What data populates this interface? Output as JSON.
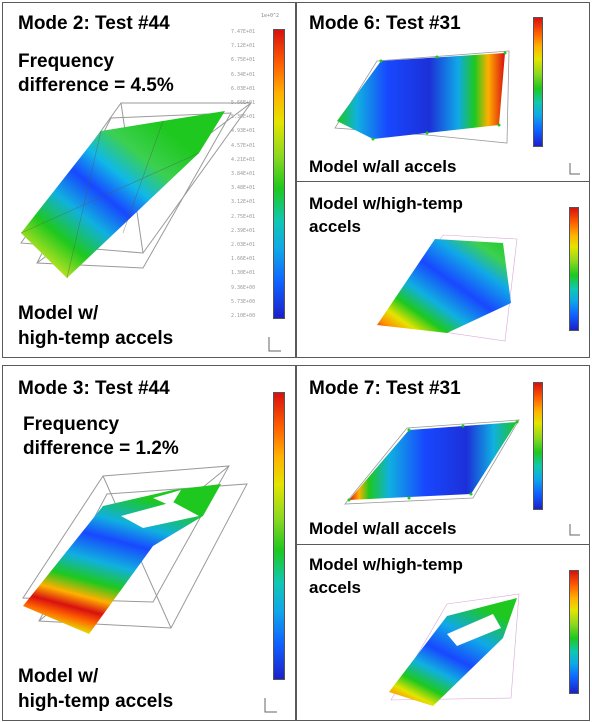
{
  "panels": {
    "mode2": {
      "title": "Mode 2: Test #44",
      "freq_line1": "Frequency",
      "freq_line2": "difference = 4.5%",
      "caption_line1": "Model w/",
      "caption_line2": "high-temp accels",
      "colorbar_unit": "1e+0^2",
      "colorbar_labels": [
        "7.47E+01",
        "7.12E+01",
        "6.75E+01",
        "6.34E+01",
        "6.03E+01",
        "5.66E+01",
        "5.30E+01",
        "4.93E+01",
        "4.57E+01",
        "4.21E+01",
        "3.84E+01",
        "3.48E+01",
        "3.12E+01",
        "2.75E+01",
        "2.39E+01",
        "2.03E+01",
        "1.66E+01",
        "1.30E+01",
        "9.36E+00",
        "5.73E+00",
        "2.10E+00"
      ]
    },
    "mode6": {
      "title": "Mode 6: Test #31",
      "top_caption": "Model w/all accels",
      "bottom_caption_line1": "Model w/high-temp",
      "bottom_caption_line2": "accels"
    },
    "mode3": {
      "title": "Mode 3: Test #44",
      "freq_line1": "Frequency",
      "freq_line2": "difference = 1.2%",
      "caption_line1": "Model w/",
      "caption_line2": "high-temp accels"
    },
    "mode7": {
      "title": "Mode 7: Test #31",
      "top_caption": "Model w/all accels",
      "bottom_caption_line1": "Model w/high-temp",
      "bottom_caption_line2": "accels"
    }
  },
  "colors": {
    "border": "#5a5a5a",
    "scale_high": "#d81010",
    "scale_mid": "#1ec81e",
    "scale_low": "#1c20c8"
  }
}
